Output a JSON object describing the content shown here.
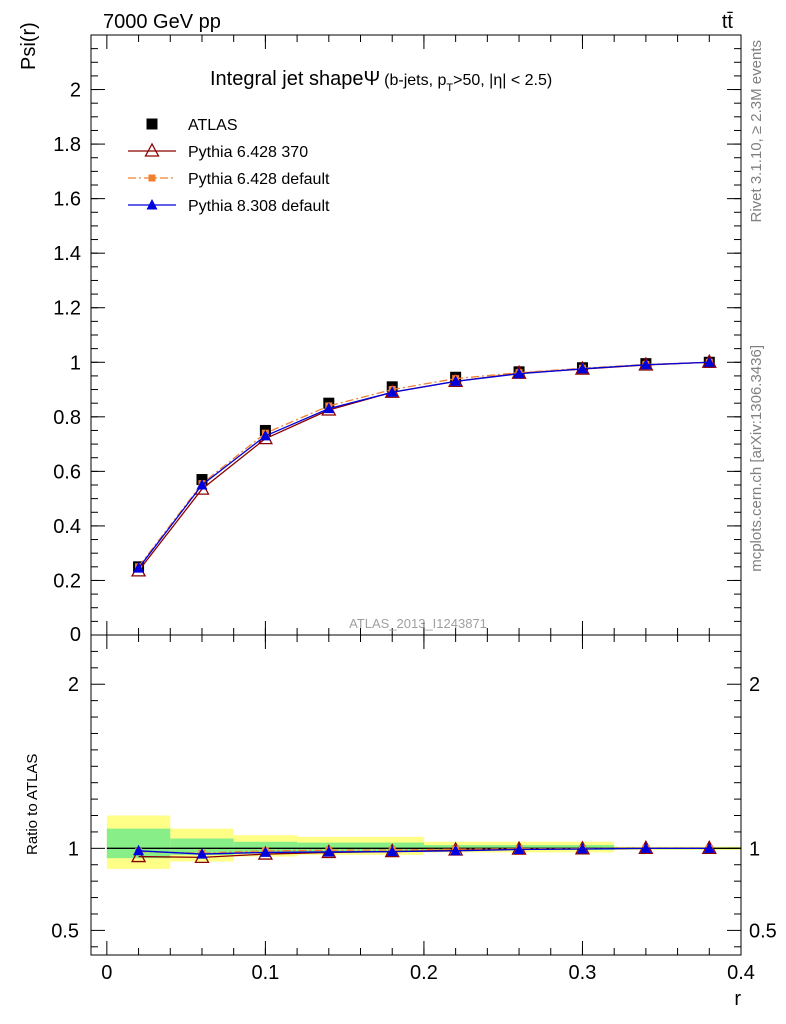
{
  "header": {
    "energy_label": "7000 GeV pp",
    "process_label": "tt̄"
  },
  "side_labels": {
    "rivet": "Rivet 3.1.10, ≥ 2.3M events",
    "mcplots": "mcplots.cern.ch [arXiv:1306.3436]"
  },
  "watermark": "ATLAS_2013_I1243871",
  "chart_data": [
    {
      "type": "line",
      "title": "Integral jet shapeΨ",
      "title_detail": {
        "pre": "(b-jets, p",
        "sub": "T",
        "post": ">50, |η| < 2.5)"
      },
      "xlabel": "r",
      "ylabel": "Psi(r)",
      "xlim": [
        -0.01,
        0.4
      ],
      "ylim": [
        0,
        2.2
      ],
      "yticks": [
        0.2,
        0.4,
        0.6,
        0.8,
        1,
        1.2,
        1.4,
        1.6,
        1.8,
        2
      ],
      "ytick_labels": [
        "0.2",
        "0.4",
        "0.6",
        "0.8",
        "1",
        "1.2",
        "1.4",
        "1.6",
        "1.8",
        "2"
      ],
      "grid": false,
      "legend_position": "top-left",
      "x": [
        0.02,
        0.06,
        0.1,
        0.14,
        0.18,
        0.22,
        0.26,
        0.3,
        0.34,
        0.38
      ],
      "series": [
        {
          "name": "ATLAS",
          "color": "#000000",
          "marker": "square",
          "values": [
            0.25,
            0.57,
            0.75,
            0.85,
            0.91,
            0.945,
            0.965,
            0.98,
            0.995,
            1.0
          ]
        },
        {
          "name": "Pythia 6.428 370",
          "color": "#8b0000",
          "marker": "open-triangle",
          "values": [
            0.235,
            0.535,
            0.72,
            0.825,
            0.89,
            0.93,
            0.96,
            0.975,
            0.99,
            1.0
          ]
        },
        {
          "name": "Pythia 6.428 default",
          "color": "#f08030",
          "marker": "small-square",
          "dash": "dashdot",
          "values": [
            0.25,
            0.555,
            0.74,
            0.84,
            0.9,
            0.94,
            0.962,
            0.978,
            0.992,
            1.0
          ]
        },
        {
          "name": "Pythia 8.308 default",
          "color": "#0000dd",
          "marker": "filled-triangle",
          "values": [
            0.245,
            0.55,
            0.73,
            0.83,
            0.89,
            0.93,
            0.958,
            0.976,
            0.991,
            1.0
          ]
        }
      ]
    },
    {
      "type": "line",
      "ylabel": "Ratio to ATLAS",
      "xlabel": "r",
      "xlim": [
        -0.01,
        0.4
      ],
      "ylim": [
        0.35,
        2.3
      ],
      "xticks": [
        0,
        0.1,
        0.2,
        0.3,
        0.4
      ],
      "xtick_labels": [
        "0",
        "0.1",
        "0.2",
        "0.3",
        "0.4"
      ],
      "yticks": [
        0.5,
        1,
        2
      ],
      "ytick_labels": [
        "0.5",
        "1",
        "2"
      ],
      "reference": 1,
      "x": [
        0.02,
        0.06,
        0.1,
        0.14,
        0.18,
        0.22,
        0.26,
        0.3,
        0.34,
        0.38
      ],
      "bands": [
        {
          "name": "total uncertainty",
          "color": "#ffff88",
          "bins": [
            [
              0,
              0.04,
              0.875,
              1.2
            ],
            [
              0.04,
              0.08,
              0.92,
              1.12
            ],
            [
              0.08,
              0.12,
              0.95,
              1.08
            ],
            [
              0.12,
              0.2,
              0.96,
              1.07
            ],
            [
              0.2,
              0.32,
              0.975,
              1.04
            ],
            [
              0.32,
              0.4,
              0.99,
              1.01
            ]
          ]
        },
        {
          "name": "stat uncertainty",
          "color": "#88ee88",
          "bins": [
            [
              0,
              0.04,
              0.94,
              1.12
            ],
            [
              0.04,
              0.08,
              0.96,
              1.06
            ],
            [
              0.08,
              0.12,
              0.975,
              1.04
            ],
            [
              0.12,
              0.2,
              0.98,
              1.035
            ],
            [
              0.2,
              0.32,
              0.99,
              1.02
            ],
            [
              0.32,
              0.4,
              0.995,
              1.005
            ]
          ]
        }
      ],
      "series": [
        {
          "name": "Pythia 6.428 370",
          "color": "#8b0000",
          "marker": "open-triangle",
          "values": [
            0.95,
            0.945,
            0.965,
            0.975,
            0.98,
            0.99,
            0.995,
            0.997,
            1.0,
            1.0
          ]
        },
        {
          "name": "Pythia 6.428 default",
          "color": "#f08030",
          "marker": "small-square",
          "dash": "dashdot",
          "values": [
            0.98,
            0.97,
            0.985,
            0.988,
            0.99,
            0.995,
            0.997,
            0.998,
            1.0,
            1.0
          ]
        },
        {
          "name": "Pythia 8.308 default",
          "color": "#0000dd",
          "marker": "filled-triangle",
          "values": [
            0.985,
            0.965,
            0.975,
            0.978,
            0.98,
            0.985,
            0.993,
            0.996,
            1.0,
            1.0
          ]
        }
      ]
    }
  ]
}
